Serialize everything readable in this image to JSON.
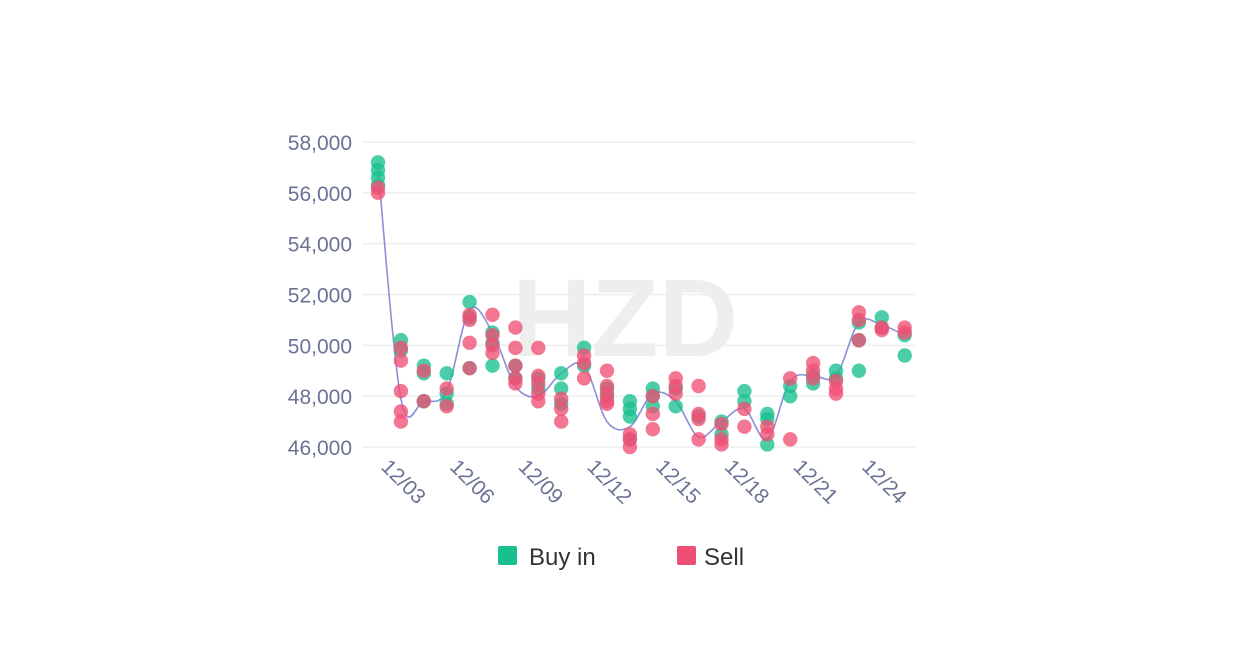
{
  "colors": {
    "buy": "#18c08f",
    "sell": "#f04f75",
    "line": "#8b8fd6",
    "grid": "#eeeeee",
    "tick_text": "#6b7394",
    "legend_text": "#333333",
    "watermark": "#eeeeee"
  },
  "watermark": "HZD",
  "legend": [
    {
      "label": "Buy in",
      "color_key": "buy"
    },
    {
      "label": "Sell",
      "color_key": "sell"
    }
  ],
  "chart_data": {
    "type": "scatter",
    "y_ticks": [
      46000,
      48000,
      50000,
      52000,
      54000,
      56000,
      58000
    ],
    "y_tick_labels": [
      "46,000",
      "48,000",
      "50,000",
      "52,000",
      "54,000",
      "56,000",
      "58,000"
    ],
    "ylim": [
      46000,
      58000
    ],
    "x_tick_labels": [
      "12/03",
      "12/06",
      "12/09",
      "12/12",
      "12/15",
      "12/18",
      "12/21",
      "12/24"
    ],
    "x_categories": [
      "12/03",
      "12/04",
      "12/05",
      "12/06",
      "12/07",
      "12/08",
      "12/09",
      "12/10",
      "12/11",
      "12/12",
      "12/13",
      "12/14",
      "12/15",
      "12/16",
      "12/17",
      "12/18",
      "12/19",
      "12/20",
      "12/21",
      "12/22",
      "12/23",
      "12/24",
      "12/25",
      "12/26"
    ],
    "grid": "horizontal",
    "legend_position": "bottom",
    "series": [
      {
        "name": "Buy in",
        "color_key": "buy",
        "points": [
          [
            "12/03",
            57200
          ],
          [
            "12/03",
            56900
          ],
          [
            "12/03",
            56600
          ],
          [
            "12/03",
            56300
          ],
          [
            "12/04",
            50200
          ],
          [
            "12/04",
            49800
          ],
          [
            "12/05",
            49200
          ],
          [
            "12/05",
            48900
          ],
          [
            "12/05",
            47800
          ],
          [
            "12/06",
            48900
          ],
          [
            "12/06",
            48100
          ],
          [
            "12/06",
            47700
          ],
          [
            "12/07",
            51700
          ],
          [
            "12/07",
            51100
          ],
          [
            "12/07",
            49100
          ],
          [
            "12/08",
            50500
          ],
          [
            "12/08",
            50100
          ],
          [
            "12/08",
            49200
          ],
          [
            "12/09",
            49200
          ],
          [
            "12/09",
            48700
          ],
          [
            "12/10",
            48700
          ],
          [
            "12/10",
            48300
          ],
          [
            "12/11",
            48900
          ],
          [
            "12/11",
            48300
          ],
          [
            "12/11",
            47700
          ],
          [
            "12/12",
            49900
          ],
          [
            "12/12",
            49200
          ],
          [
            "12/13",
            48300
          ],
          [
            "12/13",
            48000
          ],
          [
            "12/14",
            47800
          ],
          [
            "12/14",
            47500
          ],
          [
            "12/14",
            47200
          ],
          [
            "12/14",
            46300
          ],
          [
            "12/15",
            48300
          ],
          [
            "12/15",
            48000
          ],
          [
            "12/15",
            47600
          ],
          [
            "12/16",
            48300
          ],
          [
            "12/16",
            47600
          ],
          [
            "12/17",
            47200
          ],
          [
            "12/18",
            47000
          ],
          [
            "12/18",
            46500
          ],
          [
            "12/19",
            48200
          ],
          [
            "12/19",
            47800
          ],
          [
            "12/20",
            47300
          ],
          [
            "12/20",
            47100
          ],
          [
            "12/20",
            46100
          ],
          [
            "12/21",
            48400
          ],
          [
            "12/21",
            48000
          ],
          [
            "12/22",
            48800
          ],
          [
            "12/22",
            48500
          ],
          [
            "12/23",
            49000
          ],
          [
            "12/23",
            48700
          ],
          [
            "12/24",
            50900
          ],
          [
            "12/24",
            50200
          ],
          [
            "12/24",
            49000
          ],
          [
            "12/25",
            51100
          ],
          [
            "12/25",
            50700
          ],
          [
            "12/26",
            50400
          ],
          [
            "12/26",
            49600
          ]
        ]
      },
      {
        "name": "Sell",
        "color_key": "sell",
        "points": [
          [
            "12/03",
            56200
          ],
          [
            "12/03",
            56000
          ],
          [
            "12/04",
            49900
          ],
          [
            "12/04",
            49400
          ],
          [
            "12/04",
            48200
          ],
          [
            "12/04",
            47400
          ],
          [
            "12/04",
            47000
          ],
          [
            "12/05",
            49000
          ],
          [
            "12/05",
            47800
          ],
          [
            "12/06",
            48300
          ],
          [
            "12/06",
            47600
          ],
          [
            "12/07",
            51200
          ],
          [
            "12/07",
            51000
          ],
          [
            "12/07",
            50100
          ],
          [
            "12/07",
            49100
          ],
          [
            "12/08",
            51200
          ],
          [
            "12/08",
            50400
          ],
          [
            "12/08",
            50000
          ],
          [
            "12/08",
            49700
          ],
          [
            "12/09",
            50700
          ],
          [
            "12/09",
            49900
          ],
          [
            "12/09",
            49200
          ],
          [
            "12/09",
            48700
          ],
          [
            "12/09",
            48500
          ],
          [
            "12/10",
            49900
          ],
          [
            "12/10",
            48800
          ],
          [
            "12/10",
            48500
          ],
          [
            "12/10",
            48100
          ],
          [
            "12/10",
            47800
          ],
          [
            "12/11",
            47900
          ],
          [
            "12/11",
            47500
          ],
          [
            "12/11",
            47000
          ],
          [
            "12/12",
            49600
          ],
          [
            "12/12",
            49300
          ],
          [
            "12/12",
            48700
          ],
          [
            "12/13",
            49000
          ],
          [
            "12/13",
            48400
          ],
          [
            "12/13",
            48100
          ],
          [
            "12/13",
            47800
          ],
          [
            "12/13",
            47700
          ],
          [
            "12/14",
            46500
          ],
          [
            "12/14",
            46300
          ],
          [
            "12/14",
            46000
          ],
          [
            "12/15",
            48000
          ],
          [
            "12/15",
            47300
          ],
          [
            "12/15",
            46700
          ],
          [
            "12/16",
            48700
          ],
          [
            "12/16",
            48400
          ],
          [
            "12/16",
            48100
          ],
          [
            "12/17",
            48400
          ],
          [
            "12/17",
            47300
          ],
          [
            "12/17",
            47100
          ],
          [
            "12/17",
            46300
          ],
          [
            "12/18",
            46900
          ],
          [
            "12/18",
            46300
          ],
          [
            "12/18",
            46100
          ],
          [
            "12/19",
            47500
          ],
          [
            "12/19",
            46800
          ],
          [
            "12/20",
            46800
          ],
          [
            "12/20",
            46500
          ],
          [
            "12/21",
            48700
          ],
          [
            "12/21",
            46300
          ],
          [
            "12/22",
            49300
          ],
          [
            "12/22",
            49000
          ],
          [
            "12/22",
            48700
          ],
          [
            "12/23",
            48600
          ],
          [
            "12/23",
            48300
          ],
          [
            "12/23",
            48100
          ],
          [
            "12/24",
            51300
          ],
          [
            "12/24",
            51000
          ],
          [
            "12/24",
            50200
          ],
          [
            "12/25",
            50700
          ],
          [
            "12/25",
            50600
          ],
          [
            "12/26",
            50700
          ],
          [
            "12/26",
            50500
          ]
        ]
      }
    ],
    "average_line": [
      57000,
      47900,
      47800,
      48200,
      51400,
      50500,
      48400,
      48000,
      48900,
      49200,
      47000,
      46800,
      48100,
      47800,
      46400,
      47000,
      47500,
      46300,
      48600,
      48800,
      48800,
      50900,
      50800,
      50400
    ]
  }
}
